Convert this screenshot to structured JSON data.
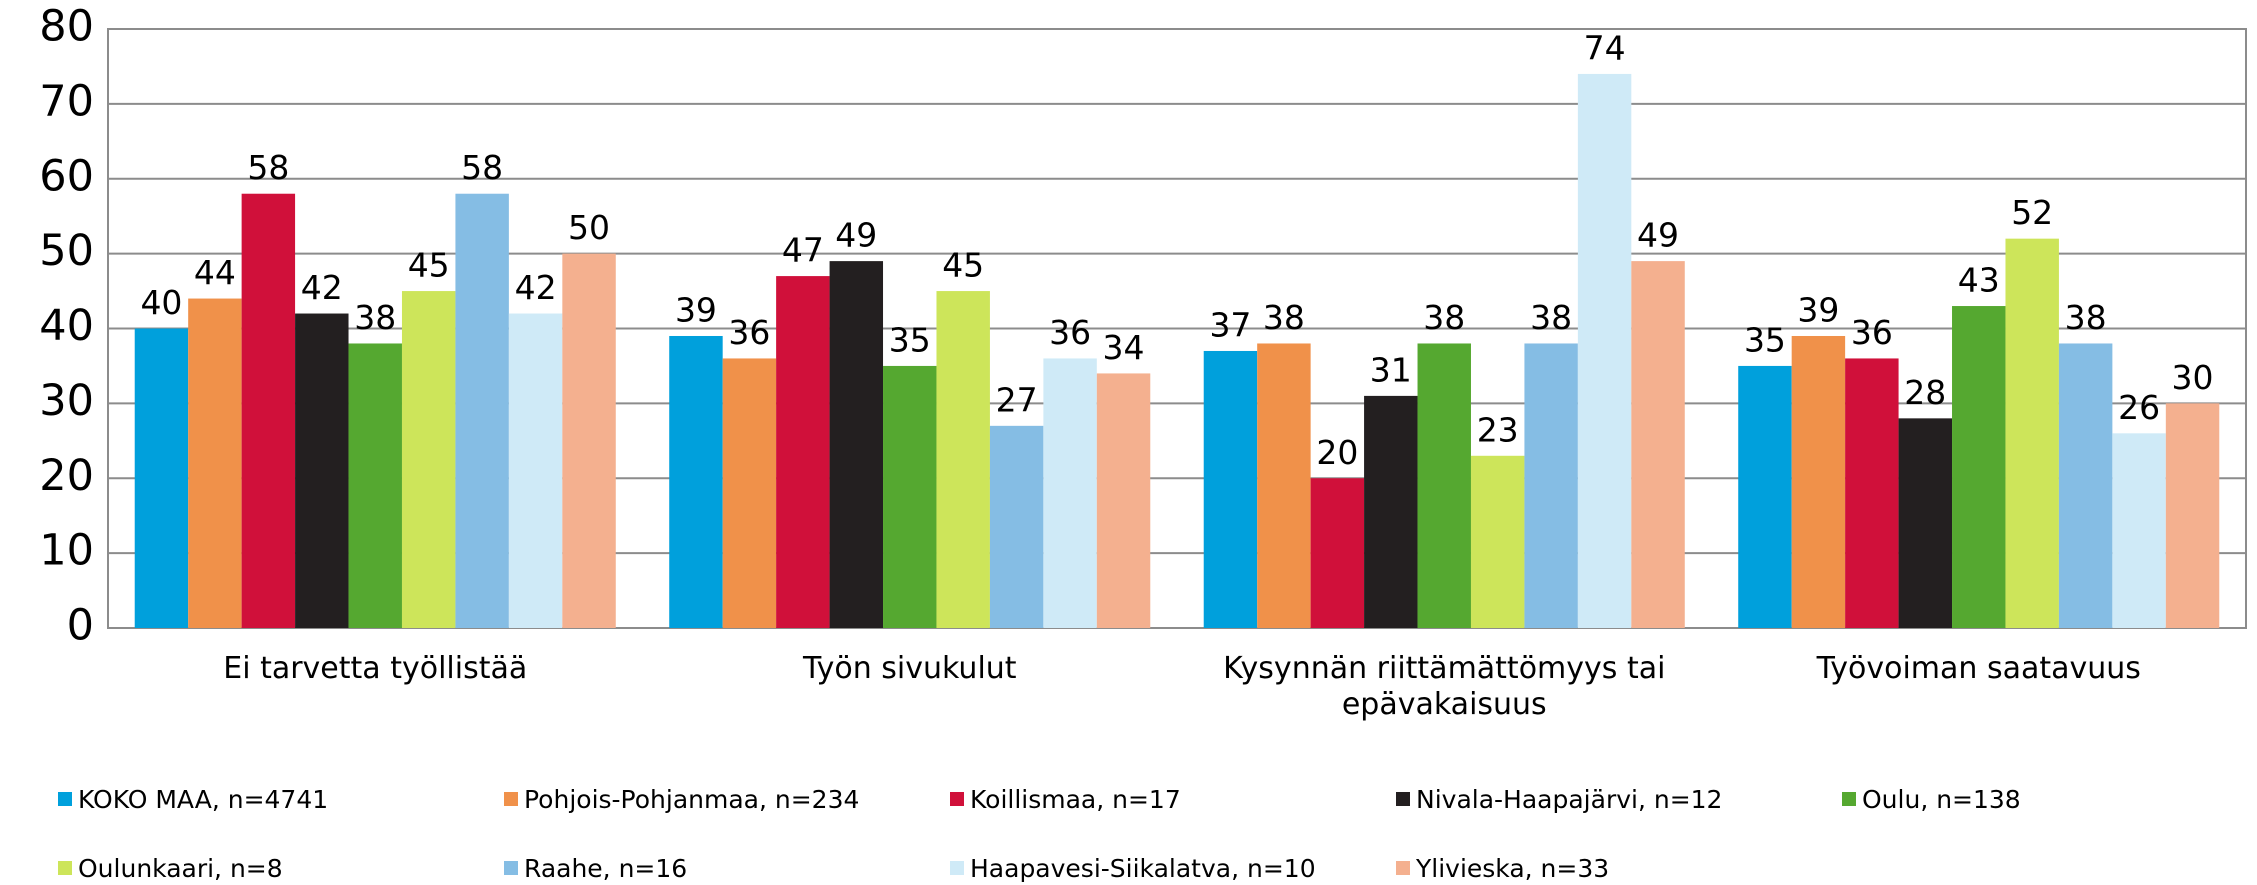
{
  "chart_data": {
    "type": "bar",
    "categories": [
      "Ei tarvetta työllistää",
      "Työn sivukulut",
      "Kysynnän riittämättömyys tai epävakaisuus",
      "Työvoiman saatavuus"
    ],
    "series": [
      {
        "name": "KOKO MAA, n=4741",
        "color": "#00a0dc",
        "values": [
          40,
          39,
          37,
          35
        ]
      },
      {
        "name": "Pohjois-Pohjanmaa, n=234",
        "color": "#f0914a",
        "values": [
          44,
          36,
          38,
          39
        ]
      },
      {
        "name": "Koillismaa, n=17",
        "color": "#d0103a",
        "values": [
          58,
          47,
          20,
          36
        ]
      },
      {
        "name": "Nivala-Haapajärvi, n=12",
        "color": "#231f20",
        "values": [
          42,
          49,
          31,
          28
        ]
      },
      {
        "name": "Oulu, n=138",
        "color": "#55a830",
        "values": [
          38,
          35,
          38,
          43
        ]
      },
      {
        "name": "Oulunkaari, n=8",
        "color": "#cde55a",
        "values": [
          45,
          45,
          23,
          52
        ]
      },
      {
        "name": "Raahe, n=16",
        "color": "#85bde4",
        "values": [
          58,
          27,
          38,
          38
        ]
      },
      {
        "name": "Haapavesi-Siikalatva, n=10",
        "color": "#cfeaf7",
        "values": [
          42,
          36,
          74,
          26
        ]
      },
      {
        "name": "Ylivieska, n=33",
        "color": "#f4b08f",
        "values": [
          50,
          34,
          49,
          30
        ]
      }
    ],
    "ylim": [
      0,
      80
    ],
    "yticks": [
      0,
      10,
      20,
      30,
      40,
      50,
      60,
      70,
      80
    ],
    "grid": true,
    "legend": "bottom"
  }
}
